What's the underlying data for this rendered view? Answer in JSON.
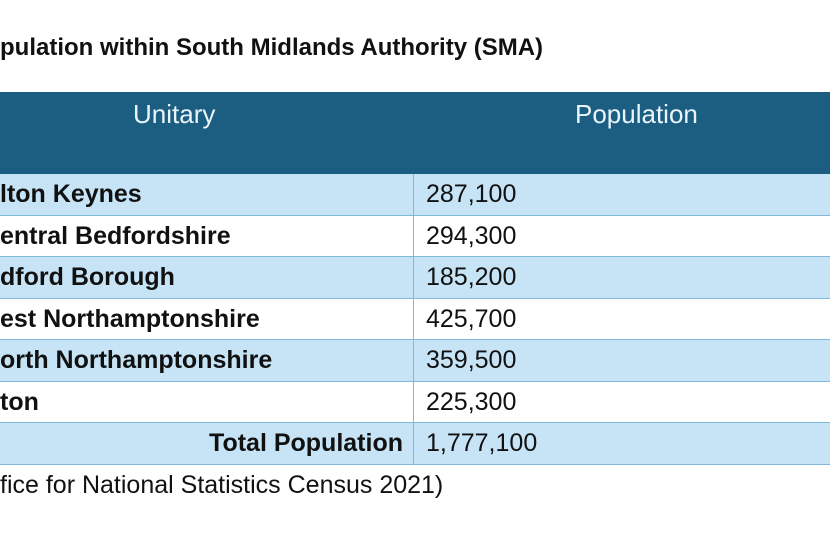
{
  "title": "pulation within South Midlands Authority (SMA)",
  "table": {
    "headers": [
      "Unitary",
      "Population"
    ],
    "rows": [
      {
        "unitary": "lton Keynes",
        "population": "287,100"
      },
      {
        "unitary": "entral Bedfordshire",
        "population": "294,300"
      },
      {
        "unitary": "dford Borough",
        "population": "185,200"
      },
      {
        "unitary": "est Northamptonshire",
        "population": "425,700"
      },
      {
        "unitary": "orth Northamptonshire",
        "population": "359,500"
      },
      {
        "unitary": "ton",
        "population": "225,300"
      }
    ],
    "total": {
      "label": "Total Population",
      "value": "1,777,100"
    }
  },
  "footnote": "fice for National Statistics Census 2021)",
  "colors": {
    "header": "#1b5e82",
    "row_alt": "#c6e4f6",
    "border": "#7fb9dc"
  }
}
